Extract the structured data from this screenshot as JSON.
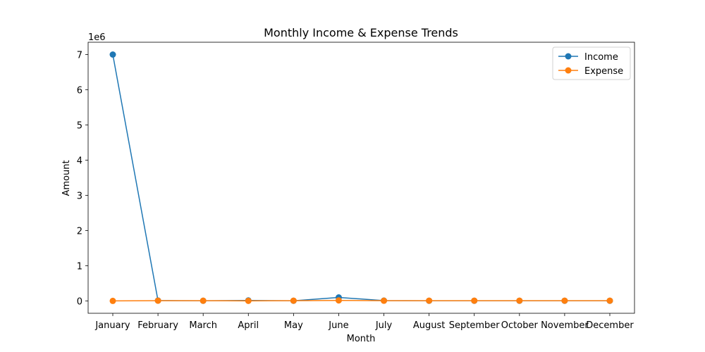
{
  "chart_data": {
    "type": "line",
    "title": "Monthly Income & Expense Trends",
    "xlabel": "Month",
    "ylabel": "Amount",
    "y_multiplier_label": "1e6",
    "categories": [
      "January",
      "February",
      "March",
      "April",
      "May",
      "June",
      "July",
      "August",
      "September",
      "October",
      "November",
      "December"
    ],
    "ylim": [
      -350000,
      7350000
    ],
    "yticks": [
      0,
      1000000,
      2000000,
      3000000,
      4000000,
      5000000,
      6000000,
      7000000
    ],
    "ytick_labels": [
      "0",
      "1",
      "2",
      "3",
      "4",
      "5",
      "6",
      "7"
    ],
    "grid": false,
    "legend_position": "top-right",
    "series": [
      {
        "name": "Income",
        "color": "#1f77b4",
        "marker": "circle",
        "values": [
          7000000,
          12000,
          5000,
          15000,
          5000,
          100000,
          10000,
          5000,
          5000,
          5000,
          5000,
          5000
        ]
      },
      {
        "name": "Expense",
        "color": "#ff7f0e",
        "marker": "circle",
        "values": [
          2000,
          8000,
          7000,
          3000,
          8000,
          15000,
          7000,
          8000,
          8000,
          8000,
          8000,
          8000
        ]
      }
    ]
  }
}
